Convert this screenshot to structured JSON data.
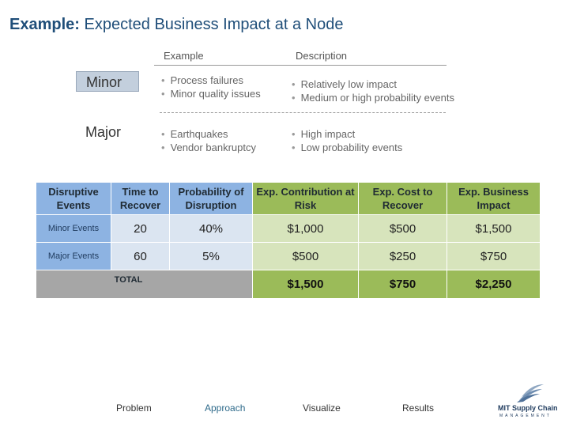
{
  "title": {
    "bold": "Example:",
    "rest": " Expected Business Impact at a Node"
  },
  "columns": {
    "example": "Example",
    "description": "Description"
  },
  "severity": [
    {
      "label": "Minor",
      "examples": [
        "Process failures",
        "Minor quality issues"
      ],
      "descriptions": [
        "Relatively low impact",
        "Medium or high probability events"
      ]
    },
    {
      "label": "Major",
      "examples": [
        "Earthquakes",
        "Vendor bankruptcy"
      ],
      "descriptions": [
        "High impact",
        "Low probability events"
      ]
    }
  ],
  "table": {
    "headers": [
      "Disruptive Events",
      "Time to Recover",
      "Probability of Disruption",
      "Exp. Contribution at Risk",
      "Exp. Cost to Recover",
      "Exp. Business Impact"
    ],
    "rows": [
      {
        "event": "Minor Events",
        "time": "20",
        "prob": "40%",
        "contribution": "$1,000",
        "cost": "$500",
        "impact": "$1,500"
      },
      {
        "event": "Major Events",
        "time": "60",
        "prob": "5%",
        "contribution": "$500",
        "cost": "$250",
        "impact": "$750"
      }
    ],
    "total": {
      "label": "TOTAL",
      "contribution": "$1,500",
      "cost": "$750",
      "impact": "$2,250"
    }
  },
  "footer": {
    "items": [
      "Problem",
      "Approach",
      "Visualize",
      "Results"
    ],
    "active": "Approach"
  },
  "logo": {
    "text": "MIT Supply Chain",
    "sub": "MANAGEMENT"
  },
  "colors": {
    "title": "#1f4e79",
    "blue_dark": "#8db3e2",
    "blue_light": "#dbe5f1",
    "green_dark": "#9bbb59",
    "green_light": "#d7e4bc",
    "gray": "#a6a6a6"
  }
}
